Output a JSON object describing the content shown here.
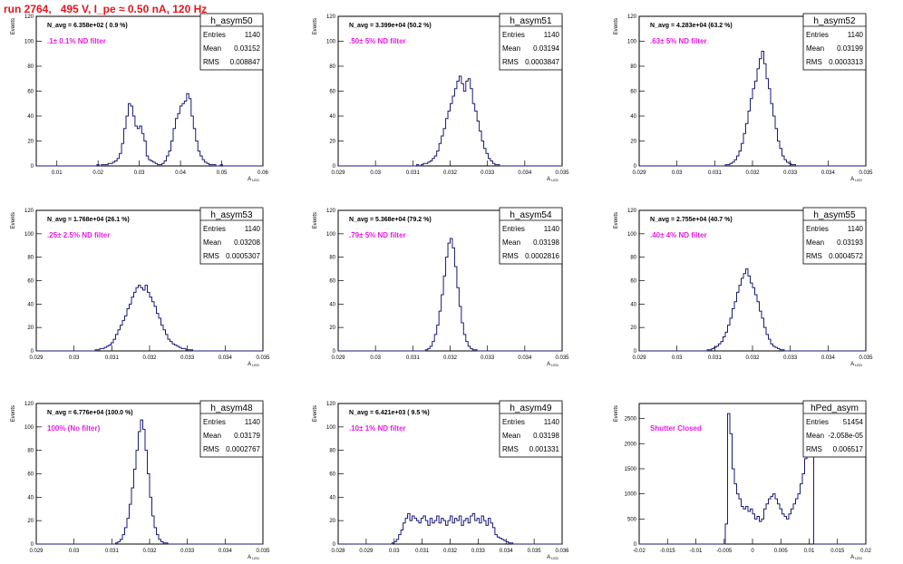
{
  "page_title": "run 2764,   495 V, I_pe ≈ 0.50 nA, 120 Hz",
  "colors": {
    "title": "#e8141a",
    "annotation": "#e51be5",
    "histogram": "#1a1a7a"
  },
  "chart_data": [
    {
      "type": "histogram",
      "hist_name": "h_asym50",
      "stats": [
        [
          "Entries",
          "1140"
        ],
        [
          "Mean",
          "0.03152"
        ],
        [
          "RMS",
          "0.008847"
        ]
      ],
      "n_avg": "N_avg = 6.358e+02 ( 0.9 %)",
      "filter": ".1± 0.1% ND filter",
      "ylabel": "Events",
      "xlabel": "A",
      "x_range": [
        0.005,
        0.06
      ],
      "y_range": [
        0,
        120
      ],
      "x_ticks": [
        "0.01",
        "0.02",
        "0.03",
        "0.04",
        "0.05",
        "0.06"
      ],
      "y_ticks": [
        "0",
        "20",
        "40",
        "60",
        "80",
        "100",
        "120"
      ],
      "counts": [
        0,
        0,
        0,
        0,
        0,
        0,
        0,
        0,
        0,
        0,
        0,
        0,
        0,
        0,
        0,
        0,
        0,
        0,
        0,
        0,
        0,
        0,
        0,
        0,
        0,
        0,
        0,
        1,
        0,
        1,
        1,
        1,
        2,
        2,
        3,
        4,
        6,
        10,
        18,
        30,
        40,
        50,
        48,
        40,
        32,
        30,
        32,
        26,
        20,
        8,
        5,
        4,
        3,
        2,
        1,
        1,
        2,
        4,
        8,
        12,
        20,
        30,
        38,
        42,
        48,
        50,
        52,
        58,
        54,
        40,
        30,
        20,
        12,
        8,
        5,
        3,
        2,
        1,
        1,
        1,
        0,
        0,
        1,
        0,
        0,
        0,
        0,
        0,
        0,
        0,
        0,
        0,
        0,
        0,
        0,
        0,
        0,
        0,
        0,
        0,
        0
      ]
    },
    {
      "type": "histogram",
      "hist_name": "h_asym51",
      "stats": [
        [
          "Entries",
          "1140"
        ],
        [
          "Mean",
          "0.03194"
        ],
        [
          "RMS",
          "0.0003847"
        ]
      ],
      "n_avg": "N_avg = 3.399e+04 (50.2 %)",
      "filter": ".50± 5% ND filter",
      "ylabel": "Events",
      "xlabel": "A",
      "x_range": [
        0.029,
        0.035
      ],
      "y_range": [
        0,
        120
      ],
      "x_ticks": [
        "0.029",
        "0.03",
        "0.031",
        "0.032",
        "0.033",
        "0.034",
        "0.035"
      ],
      "y_ticks": [
        "0",
        "20",
        "40",
        "60",
        "80",
        "100",
        "120"
      ],
      "counts": [
        0,
        0,
        0,
        0,
        0,
        0,
        0,
        0,
        0,
        0,
        0,
        0,
        0,
        0,
        0,
        0,
        0,
        0,
        0,
        0,
        0,
        0,
        0,
        0,
        0,
        0,
        0,
        0,
        0,
        0,
        0,
        0,
        0,
        0,
        0,
        1,
        0,
        1,
        2,
        2,
        3,
        4,
        6,
        8,
        12,
        18,
        24,
        30,
        38,
        44,
        50,
        56,
        62,
        68,
        72,
        66,
        60,
        68,
        70,
        62,
        50,
        44,
        36,
        28,
        20,
        14,
        10,
        6,
        4,
        2,
        1,
        1,
        0,
        0,
        0,
        0,
        0,
        0,
        0,
        0,
        0,
        0,
        0,
        0,
        0,
        0,
        0,
        0,
        0,
        0,
        0,
        0,
        0,
        0,
        0,
        0,
        0,
        0,
        0,
        0
      ]
    },
    {
      "type": "histogram",
      "hist_name": "h_asym52",
      "stats": [
        [
          "Entries",
          "1140"
        ],
        [
          "Mean",
          "0.03199"
        ],
        [
          "RMS",
          "0.0003313"
        ]
      ],
      "n_avg": "N_avg = 4.283e+04 (63.2 %)",
      "filter": ".63± 5% ND filter",
      "ylabel": "Events",
      "xlabel": "A",
      "x_range": [
        0.029,
        0.035
      ],
      "y_range": [
        0,
        120
      ],
      "x_ticks": [
        "0.029",
        "0.03",
        "0.031",
        "0.032",
        "0.033",
        "0.034",
        "0.035"
      ],
      "y_ticks": [
        "0",
        "20",
        "40",
        "60",
        "80",
        "100",
        "120"
      ],
      "counts": [
        0,
        0,
        0,
        0,
        0,
        0,
        0,
        0,
        0,
        0,
        0,
        0,
        0,
        0,
        0,
        0,
        0,
        0,
        0,
        0,
        0,
        0,
        0,
        0,
        0,
        0,
        0,
        0,
        0,
        0,
        0,
        0,
        0,
        0,
        0,
        0,
        0,
        0,
        1,
        1,
        2,
        3,
        5,
        8,
        12,
        18,
        26,
        34,
        44,
        54,
        62,
        68,
        78,
        86,
        92,
        82,
        70,
        62,
        50,
        40,
        30,
        20,
        14,
        8,
        5,
        3,
        2,
        1,
        1,
        0,
        0,
        0,
        0,
        0,
        0,
        0,
        0,
        0,
        0,
        0,
        0,
        0,
        0,
        0,
        0,
        0,
        0,
        0,
        0,
        0,
        0,
        0,
        0,
        0,
        0,
        0,
        0,
        0,
        0,
        0
      ]
    },
    {
      "type": "histogram",
      "hist_name": "h_asym53",
      "stats": [
        [
          "Entries",
          "1140"
        ],
        [
          "Mean",
          "0.03208"
        ],
        [
          "RMS",
          "0.0005307"
        ]
      ],
      "n_avg": "N_avg = 1.768e+04 (26.1 %)",
      "filter": ".25± 2.5% ND filter",
      "ylabel": "Events",
      "xlabel": "A",
      "x_range": [
        0.029,
        0.035
      ],
      "y_range": [
        0,
        120
      ],
      "x_ticks": [
        "0.029",
        "0.03",
        "0.031",
        "0.032",
        "0.033",
        "0.034",
        "0.035"
      ],
      "y_ticks": [
        "0",
        "20",
        "40",
        "60",
        "80",
        "100",
        "120"
      ],
      "counts": [
        0,
        0,
        0,
        0,
        0,
        0,
        0,
        0,
        0,
        0,
        0,
        0,
        0,
        0,
        0,
        0,
        0,
        0,
        0,
        0,
        0,
        0,
        0,
        0,
        0,
        0,
        1,
        1,
        2,
        2,
        3,
        4,
        5,
        7,
        10,
        14,
        18,
        22,
        26,
        30,
        36,
        40,
        46,
        50,
        54,
        56,
        54,
        52,
        56,
        50,
        46,
        42,
        38,
        32,
        28,
        22,
        18,
        14,
        10,
        8,
        6,
        5,
        4,
        3,
        2,
        2,
        1,
        1,
        1,
        0,
        0,
        0,
        0,
        0,
        0,
        0,
        0,
        0,
        0,
        0,
        0,
        0,
        0,
        0,
        0,
        0,
        0,
        0,
        0,
        0,
        0,
        0,
        0,
        0,
        0,
        0,
        0,
        0,
        0,
        0
      ]
    },
    {
      "type": "histogram",
      "hist_name": "h_asym54",
      "stats": [
        [
          "Entries",
          "1140"
        ],
        [
          "Mean",
          "0.03198"
        ],
        [
          "RMS",
          "0.0002816"
        ]
      ],
      "n_avg": "N_avg = 5.368e+04 (79.2 %)",
      "filter": ".79± 5% ND filter",
      "ylabel": "Events",
      "xlabel": "A",
      "x_range": [
        0.029,
        0.035
      ],
      "y_range": [
        0,
        120
      ],
      "x_ticks": [
        "0.029",
        "0.03",
        "0.031",
        "0.032",
        "0.033",
        "0.034",
        "0.035"
      ],
      "y_ticks": [
        "0",
        "20",
        "40",
        "60",
        "80",
        "100",
        "120"
      ],
      "counts": [
        0,
        0,
        0,
        0,
        0,
        0,
        0,
        0,
        0,
        0,
        0,
        0,
        0,
        0,
        0,
        0,
        0,
        0,
        0,
        0,
        0,
        0,
        0,
        0,
        0,
        0,
        0,
        0,
        0,
        0,
        0,
        0,
        0,
        0,
        0,
        0,
        0,
        0,
        0,
        1,
        2,
        4,
        8,
        14,
        22,
        34,
        48,
        64,
        80,
        92,
        96,
        88,
        72,
        54,
        38,
        24,
        14,
        8,
        4,
        2,
        1,
        1,
        0,
        0,
        0,
        0,
        0,
        0,
        0,
        0,
        0,
        0,
        0,
        0,
        0,
        0,
        0,
        0,
        0,
        0,
        0,
        0,
        0,
        0,
        0,
        0,
        0,
        0,
        0,
        0,
        0,
        0,
        0,
        0,
        0,
        0,
        0,
        0,
        0,
        0
      ]
    },
    {
      "type": "histogram",
      "hist_name": "h_asym55",
      "stats": [
        [
          "Entries",
          "1140"
        ],
        [
          "Mean",
          "0.03193"
        ],
        [
          "RMS",
          "0.0004572"
        ]
      ],
      "n_avg": "N_avg = 2.755e+04 (40.7 %)",
      "filter": ".40± 4% ND filter",
      "ylabel": "Events",
      "xlabel": "A",
      "x_range": [
        0.029,
        0.035
      ],
      "y_range": [
        0,
        120
      ],
      "x_ticks": [
        "0.029",
        "0.03",
        "0.031",
        "0.032",
        "0.033",
        "0.034",
        "0.035"
      ],
      "y_ticks": [
        "0",
        "20",
        "40",
        "60",
        "80",
        "100",
        "120"
      ],
      "counts": [
        0,
        0,
        0,
        0,
        0,
        0,
        0,
        0,
        0,
        0,
        0,
        0,
        0,
        0,
        0,
        0,
        0,
        0,
        0,
        0,
        0,
        0,
        0,
        0,
        0,
        0,
        0,
        0,
        0,
        0,
        1,
        1,
        2,
        3,
        4,
        6,
        8,
        12,
        16,
        22,
        28,
        36,
        42,
        50,
        56,
        62,
        66,
        70,
        64,
        58,
        54,
        48,
        42,
        34,
        28,
        20,
        14,
        10,
        6,
        4,
        3,
        2,
        1,
        1,
        0,
        0,
        0,
        0,
        0,
        0,
        0,
        0,
        0,
        0,
        0,
        0,
        0,
        0,
        0,
        0,
        0,
        0,
        0,
        0,
        0,
        0,
        0,
        0,
        0,
        0,
        0,
        0,
        0,
        0,
        0,
        0,
        0,
        0,
        0,
        0
      ]
    },
    {
      "type": "histogram",
      "hist_name": "h_asym48",
      "stats": [
        [
          "Entries",
          "1140"
        ],
        [
          "Mean",
          "0.03179"
        ],
        [
          "RMS",
          "0.0002767"
        ]
      ],
      "n_avg": "N_avg = 6.776e+04 (100.0 %)",
      "filter": "100% (No filter)",
      "ylabel": "Events",
      "xlabel": "A",
      "x_range": [
        0.029,
        0.035
      ],
      "y_range": [
        0,
        120
      ],
      "x_ticks": [
        "0.029",
        "0.03",
        "0.031",
        "0.032",
        "0.033",
        "0.034",
        "0.035"
      ],
      "y_ticks": [
        "0",
        "20",
        "40",
        "60",
        "80",
        "100",
        "120"
      ],
      "counts": [
        0,
        0,
        0,
        0,
        0,
        0,
        0,
        0,
        0,
        0,
        0,
        0,
        0,
        0,
        0,
        0,
        0,
        0,
        0,
        0,
        0,
        0,
        0,
        0,
        0,
        0,
        0,
        0,
        0,
        0,
        0,
        0,
        0,
        0,
        0,
        1,
        2,
        4,
        8,
        14,
        22,
        34,
        48,
        64,
        80,
        96,
        106,
        98,
        80,
        60,
        40,
        24,
        14,
        8,
        4,
        2,
        1,
        1,
        0,
        0,
        0,
        0,
        0,
        0,
        0,
        0,
        0,
        0,
        0,
        0,
        0,
        0,
        0,
        0,
        0,
        0,
        0,
        0,
        0,
        0,
        0,
        0,
        0,
        0,
        0,
        0,
        0,
        0,
        0,
        0,
        0,
        0,
        0,
        0,
        0,
        0,
        0,
        0,
        0,
        0
      ]
    },
    {
      "type": "histogram",
      "hist_name": "h_asym49",
      "stats": [
        [
          "Entries",
          "1140"
        ],
        [
          "Mean",
          "0.03198"
        ],
        [
          "RMS",
          "0.001331"
        ]
      ],
      "n_avg": "N_avg = 6.421e+03 ( 9.5 %)",
      "filter": ".10± 1% ND filter",
      "ylabel": "Events",
      "xlabel": "A",
      "x_range": [
        0.028,
        0.036
      ],
      "y_range": [
        0,
        120
      ],
      "x_ticks": [
        "0.028",
        "0.029",
        "0.03",
        "0.031",
        "0.032",
        "0.033",
        "0.034",
        "0.035",
        "0.036"
      ],
      "y_ticks": [
        "0",
        "20",
        "40",
        "60",
        "80",
        "100",
        "120"
      ],
      "counts": [
        0,
        0,
        0,
        0,
        0,
        0,
        0,
        0,
        0,
        0,
        0,
        0,
        0,
        0,
        0,
        0,
        0,
        0,
        0,
        0,
        0,
        0,
        0,
        0,
        1,
        2,
        4,
        8,
        12,
        18,
        22,
        26,
        20,
        24,
        22,
        20,
        18,
        22,
        24,
        20,
        16,
        22,
        18,
        20,
        24,
        18,
        22,
        20,
        16,
        20,
        24,
        18,
        22,
        20,
        24,
        16,
        20,
        22,
        18,
        24,
        26,
        20,
        22,
        18,
        24,
        20,
        16,
        22,
        18,
        14,
        8,
        6,
        5,
        4,
        3,
        2,
        1,
        1,
        0,
        0,
        0,
        0,
        0,
        0,
        0,
        0,
        0,
        0,
        0,
        0,
        0,
        0,
        0,
        0,
        0,
        0,
        0,
        0,
        0,
        0
      ]
    },
    {
      "type": "histogram",
      "hist_name": "hPed_asym",
      "stats": [
        [
          "Entries",
          "51454"
        ],
        [
          "Mean",
          "-2.058e-05"
        ],
        [
          "RMS",
          "0.006517"
        ]
      ],
      "n_avg": "",
      "filter": "Shutter Closed",
      "ylabel": "Events",
      "xlabel": "A",
      "x_range": [
        -0.02,
        0.02
      ],
      "y_range": [
        0,
        2800
      ],
      "x_ticks": [
        "-0.02",
        "-0.015",
        "-0.01",
        "-0.005",
        "0",
        "0.005",
        "0.01",
        "0.015",
        "0.02"
      ],
      "y_ticks": [
        "0",
        "500",
        "1000",
        "1500",
        "2000",
        "2500"
      ],
      "counts": [
        0,
        0,
        0,
        0,
        0,
        0,
        0,
        0,
        0,
        0,
        0,
        0,
        0,
        0,
        0,
        0,
        0,
        0,
        0,
        0,
        0,
        0,
        0,
        0,
        0,
        0,
        0,
        0,
        0,
        0,
        0,
        0,
        0,
        0,
        0,
        0,
        0,
        0,
        400,
        2600,
        2200,
        1500,
        1200,
        1000,
        900,
        750,
        700,
        750,
        650,
        700,
        600,
        500,
        550,
        450,
        500,
        700,
        800,
        900,
        950,
        1000,
        900,
        800,
        700,
        600,
        550,
        500,
        600,
        700,
        800,
        900,
        1000,
        1200,
        1400,
        1700,
        2000,
        2500,
        2800,
        0,
        0,
        0,
        0,
        0,
        0,
        0,
        0,
        0,
        0,
        0,
        0,
        0,
        0,
        0,
        0,
        0,
        0,
        0,
        0,
        0,
        0,
        0
      ]
    }
  ]
}
